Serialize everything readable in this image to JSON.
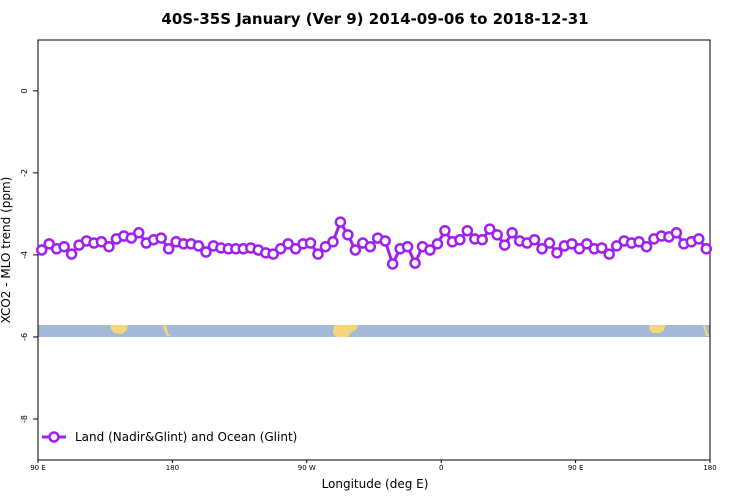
{
  "chart_data": {
    "type": "line",
    "title": "40S-35S January (Ver 9)   2014-09-06 to 2018-12-31",
    "x_label": "Longitude (deg E)",
    "y_label": "XCO2 - MLO trend (ppm)",
    "x": [
      92.5,
      97.5,
      102.5,
      107.5,
      112.5,
      117.5,
      122.5,
      127.5,
      132.5,
      137.5,
      142.5,
      147.5,
      152.5,
      157.5,
      162.5,
      167.5,
      172.5,
      177.5,
      182.5,
      187.5,
      192.5,
      197.5,
      202.5,
      207.5,
      212.5,
      217.5,
      222.5,
      227.5,
      232.5,
      237.5,
      242.5,
      247.5,
      252.5,
      257.5,
      262.5,
      267.5,
      272.5,
      277.5,
      282.5,
      287.5,
      292.5,
      297.5,
      302.5,
      307.5,
      312.5,
      317.5,
      322.5,
      327.5,
      332.5,
      337.5,
      342.5,
      347.5,
      352.5,
      357.5,
      362.5,
      367.5,
      372.5,
      377.5,
      382.5,
      387.5,
      392.5,
      397.5,
      402.5,
      407.5,
      412.5,
      417.5,
      422.5,
      427.5,
      432.5,
      437.5,
      442.5,
      447.5,
      452.5,
      457.5,
      462.5,
      467.5,
      472.5,
      477.5,
      482.5,
      487.5,
      492.5,
      497.5,
      502.5,
      507.5,
      512.5,
      517.5,
      522.5,
      527.5,
      532.5,
      537.5
    ],
    "series": [
      {
        "name": "Land (Nadir&Glint) and Ocean (Glint)",
        "color": "#a020f0",
        "values": [
          -3.88,
          -3.73,
          -3.85,
          -3.8,
          -3.98,
          -3.76,
          -3.66,
          -3.71,
          -3.68,
          -3.8,
          -3.61,
          -3.54,
          -3.59,
          -3.46,
          -3.71,
          -3.63,
          -3.59,
          -3.85,
          -3.68,
          -3.73,
          -3.73,
          -3.78,
          -3.93,
          -3.78,
          -3.83,
          -3.85,
          -3.85,
          -3.85,
          -3.83,
          -3.88,
          -3.95,
          -3.98,
          -3.85,
          -3.73,
          -3.85,
          -3.73,
          -3.71,
          -3.98,
          -3.8,
          -3.68,
          -3.2,
          -3.51,
          -3.88,
          -3.71,
          -3.8,
          -3.59,
          -3.66,
          -4.22,
          -3.85,
          -3.8,
          -4.2,
          -3.8,
          -3.88,
          -3.73,
          -3.41,
          -3.68,
          -3.63,
          -3.41,
          -3.61,
          -3.63,
          -3.37,
          -3.51,
          -3.76,
          -3.46,
          -3.66,
          -3.71,
          -3.63,
          -3.85,
          -3.71,
          -3.95,
          -3.78,
          -3.73,
          -3.85,
          -3.73,
          -3.85,
          -3.83,
          -3.98,
          -3.78,
          -3.66,
          -3.71,
          -3.68,
          -3.8,
          -3.61,
          -3.54,
          -3.56,
          -3.46,
          -3.73,
          -3.68,
          -3.61,
          -3.85
        ]
      }
    ],
    "xlim": [
      90,
      540
    ],
    "xticks": [
      {
        "value": 90,
        "label": "90 E"
      },
      180,
      {
        "value": 270,
        "label": "90 W"
      },
      {
        "value": 360,
        "label": "0"
      },
      {
        "value": 450,
        "label": "90 E"
      },
      {
        "value": 540,
        "label": "180"
      }
    ],
    "ylim": [
      -9,
      1.24
    ],
    "yticks": [
      0,
      -2,
      -4,
      -6,
      -8
    ],
    "legend": "bottom-left"
  }
}
